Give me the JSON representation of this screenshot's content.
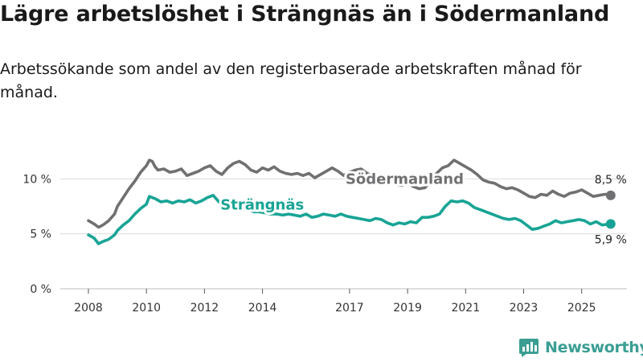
{
  "title": "Lägre arbetslöshet i Strängnäs än i Södermanland",
  "subtitle": "Arbetssökande som andel av den registerbaserade arbetskraften månad för månad.",
  "brand": {
    "name": "Newsworthy",
    "color": "#3a9e93"
  },
  "chart_data": {
    "type": "line",
    "title": "Lägre arbetslöshet i Strängnäs än i Södermanland",
    "xlabel": "",
    "ylabel": "",
    "ylim": [
      0,
      12
    ],
    "xlim": [
      2008,
      2026.3
    ],
    "grid": true,
    "yticks": [
      {
        "value": 0,
        "label": "0 %"
      },
      {
        "value": 5,
        "label": "5 %"
      },
      {
        "value": 10,
        "label": "10 %"
      }
    ],
    "xticks": [
      {
        "value": 2008,
        "label": "2008"
      },
      {
        "value": 2010,
        "label": "2010"
      },
      {
        "value": 2012,
        "label": "2012"
      },
      {
        "value": 2014,
        "label": "2014"
      },
      {
        "value": 2017,
        "label": "2017"
      },
      {
        "value": 2019,
        "label": "2019"
      },
      {
        "value": 2021,
        "label": "2021"
      },
      {
        "value": 2023,
        "label": "2023"
      },
      {
        "value": 2025,
        "label": "2025"
      }
    ],
    "series": [
      {
        "name": "Södermanland",
        "color": "#707072",
        "last_label": "8,5 %",
        "points": [
          [
            2008.0,
            6.2
          ],
          [
            2008.2,
            5.9
          ],
          [
            2008.35,
            5.6
          ],
          [
            2008.5,
            5.8
          ],
          [
            2008.7,
            6.2
          ],
          [
            2008.9,
            6.8
          ],
          [
            2009.0,
            7.5
          ],
          [
            2009.2,
            8.3
          ],
          [
            2009.4,
            9.1
          ],
          [
            2009.6,
            9.8
          ],
          [
            2009.8,
            10.6
          ],
          [
            2010.0,
            11.2
          ],
          [
            2010.1,
            11.7
          ],
          [
            2010.2,
            11.6
          ],
          [
            2010.3,
            11.1
          ],
          [
            2010.4,
            10.8
          ],
          [
            2010.6,
            10.9
          ],
          [
            2010.8,
            10.6
          ],
          [
            2011.0,
            10.7
          ],
          [
            2011.2,
            10.9
          ],
          [
            2011.4,
            10.3
          ],
          [
            2011.6,
            10.5
          ],
          [
            2011.8,
            10.7
          ],
          [
            2012.0,
            11.0
          ],
          [
            2012.2,
            11.2
          ],
          [
            2012.4,
            10.7
          ],
          [
            2012.6,
            10.4
          ],
          [
            2012.8,
            11.0
          ],
          [
            2013.0,
            11.4
          ],
          [
            2013.2,
            11.6
          ],
          [
            2013.4,
            11.3
          ],
          [
            2013.6,
            10.8
          ],
          [
            2013.8,
            10.6
          ],
          [
            2014.0,
            11.0
          ],
          [
            2014.2,
            10.8
          ],
          [
            2014.4,
            11.1
          ],
          [
            2014.6,
            10.7
          ],
          [
            2014.8,
            10.5
          ],
          [
            2015.0,
            10.4
          ],
          [
            2015.2,
            10.5
          ],
          [
            2015.4,
            10.3
          ],
          [
            2015.6,
            10.5
          ],
          [
            2015.8,
            10.1
          ],
          [
            2016.0,
            10.4
          ],
          [
            2016.2,
            10.7
          ],
          [
            2016.4,
            11.0
          ],
          [
            2016.6,
            10.7
          ],
          [
            2016.8,
            10.3
          ],
          [
            2017.0,
            10.6
          ],
          [
            2017.2,
            10.8
          ],
          [
            2017.4,
            10.9
          ],
          [
            2017.6,
            10.5
          ],
          [
            2017.8,
            10.3
          ],
          [
            2018.0,
            10.2
          ],
          [
            2018.2,
            9.9
          ],
          [
            2018.4,
            9.7
          ],
          [
            2018.6,
            9.5
          ],
          [
            2018.8,
            9.4
          ],
          [
            2019.0,
            9.6
          ],
          [
            2019.2,
            9.3
          ],
          [
            2019.4,
            9.1
          ],
          [
            2019.6,
            9.2
          ],
          [
            2019.8,
            9.8
          ],
          [
            2020.0,
            10.5
          ],
          [
            2020.2,
            11.0
          ],
          [
            2020.4,
            11.2
          ],
          [
            2020.6,
            11.7
          ],
          [
            2020.8,
            11.4
          ],
          [
            2021.0,
            11.1
          ],
          [
            2021.2,
            10.8
          ],
          [
            2021.4,
            10.4
          ],
          [
            2021.6,
            9.9
          ],
          [
            2021.8,
            9.7
          ],
          [
            2022.0,
            9.6
          ],
          [
            2022.2,
            9.3
          ],
          [
            2022.4,
            9.1
          ],
          [
            2022.6,
            9.2
          ],
          [
            2022.8,
            9.0
          ],
          [
            2023.0,
            8.7
          ],
          [
            2023.2,
            8.4
          ],
          [
            2023.4,
            8.3
          ],
          [
            2023.6,
            8.6
          ],
          [
            2023.8,
            8.5
          ],
          [
            2024.0,
            8.9
          ],
          [
            2024.2,
            8.6
          ],
          [
            2024.4,
            8.4
          ],
          [
            2024.6,
            8.7
          ],
          [
            2024.8,
            8.8
          ],
          [
            2025.0,
            9.0
          ],
          [
            2025.2,
            8.7
          ],
          [
            2025.4,
            8.4
          ],
          [
            2025.6,
            8.5
          ],
          [
            2025.8,
            8.6
          ],
          [
            2026.0,
            8.5
          ]
        ]
      },
      {
        "name": "Strängnäs",
        "color": "#18a495",
        "last_label": "5,9 %",
        "points": [
          [
            2008.0,
            4.9
          ],
          [
            2008.2,
            4.6
          ],
          [
            2008.35,
            4.1
          ],
          [
            2008.5,
            4.3
          ],
          [
            2008.7,
            4.5
          ],
          [
            2008.9,
            4.9
          ],
          [
            2009.0,
            5.3
          ],
          [
            2009.2,
            5.8
          ],
          [
            2009.4,
            6.2
          ],
          [
            2009.6,
            6.8
          ],
          [
            2009.8,
            7.3
          ],
          [
            2010.0,
            7.7
          ],
          [
            2010.1,
            8.4
          ],
          [
            2010.3,
            8.2
          ],
          [
            2010.5,
            7.9
          ],
          [
            2010.7,
            8.0
          ],
          [
            2010.9,
            7.8
          ],
          [
            2011.1,
            8.0
          ],
          [
            2011.3,
            7.9
          ],
          [
            2011.5,
            8.1
          ],
          [
            2011.7,
            7.8
          ],
          [
            2011.9,
            8.0
          ],
          [
            2012.1,
            8.3
          ],
          [
            2012.3,
            8.5
          ],
          [
            2012.5,
            7.9
          ],
          [
            2012.7,
            7.6
          ],
          [
            2012.9,
            7.6
          ],
          [
            2013.1,
            7.5
          ],
          [
            2013.3,
            7.3
          ],
          [
            2013.5,
            7.2
          ],
          [
            2013.7,
            7.0
          ],
          [
            2013.9,
            7.0
          ],
          [
            2014.1,
            6.9
          ],
          [
            2014.3,
            6.8
          ],
          [
            2014.5,
            6.8
          ],
          [
            2014.7,
            6.7
          ],
          [
            2014.9,
            6.8
          ],
          [
            2015.1,
            6.7
          ],
          [
            2015.3,
            6.6
          ],
          [
            2015.5,
            6.8
          ],
          [
            2015.7,
            6.5
          ],
          [
            2015.9,
            6.6
          ],
          [
            2016.1,
            6.8
          ],
          [
            2016.3,
            6.7
          ],
          [
            2016.5,
            6.6
          ],
          [
            2016.7,
            6.8
          ],
          [
            2016.9,
            6.6
          ],
          [
            2017.1,
            6.5
          ],
          [
            2017.3,
            6.4
          ],
          [
            2017.5,
            6.3
          ],
          [
            2017.7,
            6.2
          ],
          [
            2017.9,
            6.4
          ],
          [
            2018.1,
            6.3
          ],
          [
            2018.3,
            6.0
          ],
          [
            2018.5,
            5.8
          ],
          [
            2018.7,
            6.0
          ],
          [
            2018.9,
            5.9
          ],
          [
            2019.1,
            6.1
          ],
          [
            2019.3,
            6.0
          ],
          [
            2019.5,
            6.5
          ],
          [
            2019.7,
            6.5
          ],
          [
            2019.9,
            6.6
          ],
          [
            2020.1,
            6.8
          ],
          [
            2020.3,
            7.5
          ],
          [
            2020.5,
            8.0
          ],
          [
            2020.7,
            7.9
          ],
          [
            2020.9,
            8.0
          ],
          [
            2021.1,
            7.8
          ],
          [
            2021.3,
            7.4
          ],
          [
            2021.5,
            7.2
          ],
          [
            2021.7,
            7.0
          ],
          [
            2021.9,
            6.8
          ],
          [
            2022.1,
            6.6
          ],
          [
            2022.3,
            6.4
          ],
          [
            2022.5,
            6.3
          ],
          [
            2022.7,
            6.4
          ],
          [
            2022.9,
            6.2
          ],
          [
            2023.1,
            5.8
          ],
          [
            2023.3,
            5.4
          ],
          [
            2023.5,
            5.5
          ],
          [
            2023.7,
            5.7
          ],
          [
            2023.9,
            5.9
          ],
          [
            2024.1,
            6.2
          ],
          [
            2024.3,
            6.0
          ],
          [
            2024.5,
            6.1
          ],
          [
            2024.7,
            6.2
          ],
          [
            2024.9,
            6.3
          ],
          [
            2025.1,
            6.2
          ],
          [
            2025.3,
            5.9
          ],
          [
            2025.5,
            6.1
          ],
          [
            2025.7,
            5.8
          ],
          [
            2026.0,
            5.9
          ]
        ]
      }
    ]
  }
}
